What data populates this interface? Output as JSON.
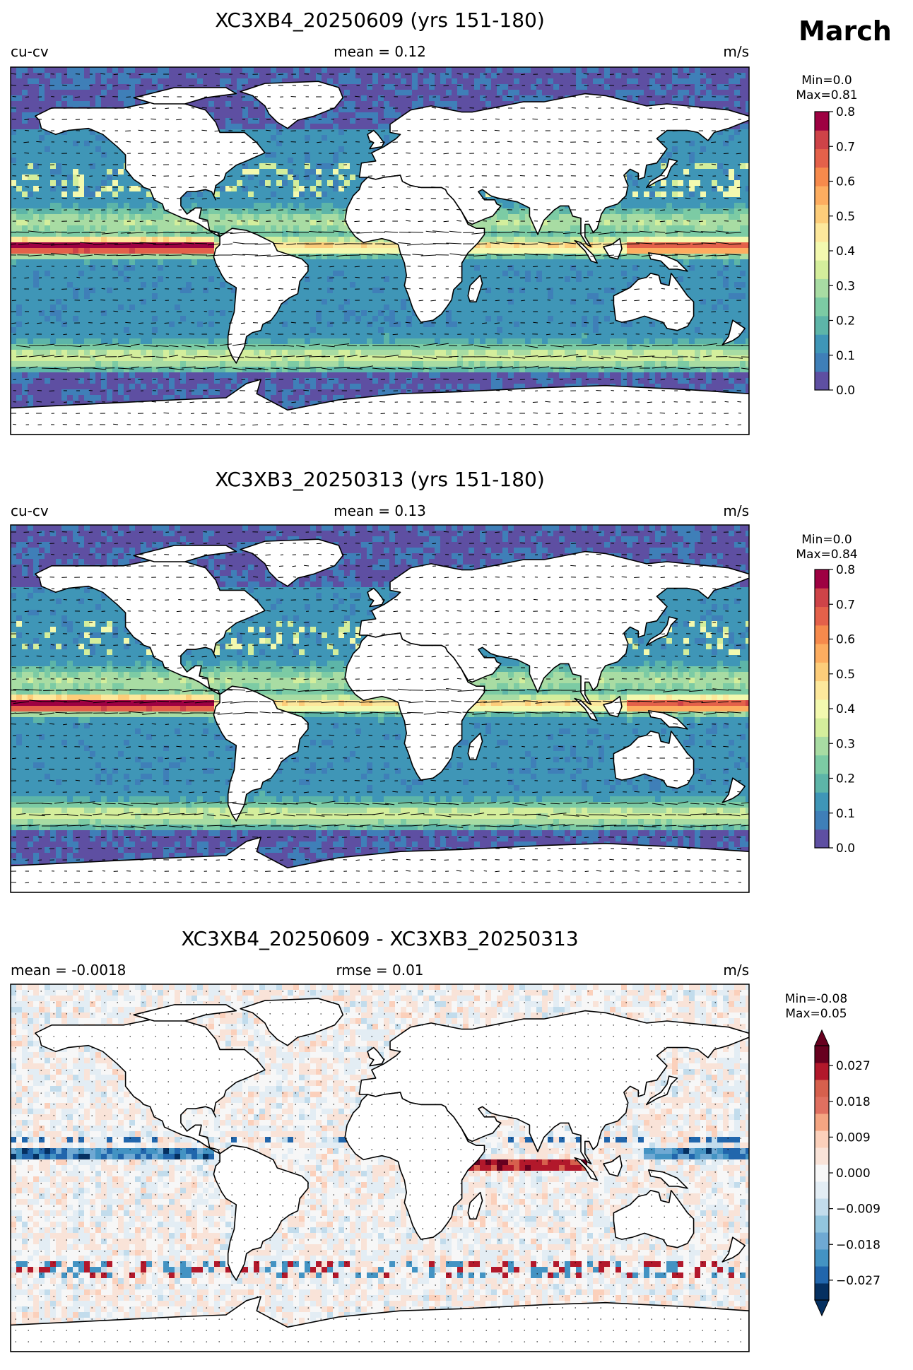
{
  "month": "March",
  "panels": [
    {
      "title": "XC3XB4_20250609 (yrs 151-180)",
      "left_label": "cu-cv",
      "center_label": "mean = 0.12",
      "units": "m/s",
      "min_text": "Min=0.0",
      "max_text": "Max=0.81"
    },
    {
      "title": "XC3XB3_20250313 (yrs 151-180)",
      "left_label": "cu-cv",
      "center_label": "mean = 0.13",
      "units": "m/s",
      "min_text": "Min=0.0",
      "max_text": "Max=0.84"
    },
    {
      "title": "XC3XB4_20250609 - XC3XB3_20250313",
      "left_label": "mean = -0.0018",
      "center_label": "rmse = 0.01",
      "units": "m/s",
      "min_text": "Min=-0.08",
      "max_text": "Max=0.05"
    }
  ],
  "chart_data": [
    {
      "type": "heatmap",
      "title": "XC3XB4_20250609 (yrs 151-180)",
      "variable": "cu-cv",
      "units": "m/s",
      "mean": 0.12,
      "min": 0.0,
      "max": 0.81,
      "colormap": "Spectral_r",
      "colorbar": {
        "range": [
          0.0,
          0.8
        ],
        "ticks": [
          "0.0",
          "0.1",
          "0.2",
          "0.3",
          "0.4",
          "0.5",
          "0.6",
          "0.7",
          "0.8"
        ]
      }
    },
    {
      "type": "heatmap",
      "title": "XC3XB3_20250313 (yrs 151-180)",
      "variable": "cu-cv",
      "units": "m/s",
      "mean": 0.13,
      "min": 0.0,
      "max": 0.84,
      "colormap": "Spectral_r",
      "colorbar": {
        "range": [
          0.0,
          0.8
        ],
        "ticks": [
          "0.0",
          "0.1",
          "0.2",
          "0.3",
          "0.4",
          "0.5",
          "0.6",
          "0.7",
          "0.8"
        ]
      }
    },
    {
      "type": "heatmap",
      "title": "XC3XB4_20250609 - XC3XB3_20250313",
      "units": "m/s",
      "mean": -0.0018,
      "rmse": 0.01,
      "min": -0.08,
      "max": 0.05,
      "colormap": "RdBu_r",
      "colorbar": {
        "range": [
          -0.032,
          0.032
        ],
        "extend": "both",
        "ticks": [
          "−0.027",
          "−0.018",
          "−0.009",
          "0.000",
          "0.009",
          "0.018",
          "0.027"
        ]
      }
    }
  ]
}
